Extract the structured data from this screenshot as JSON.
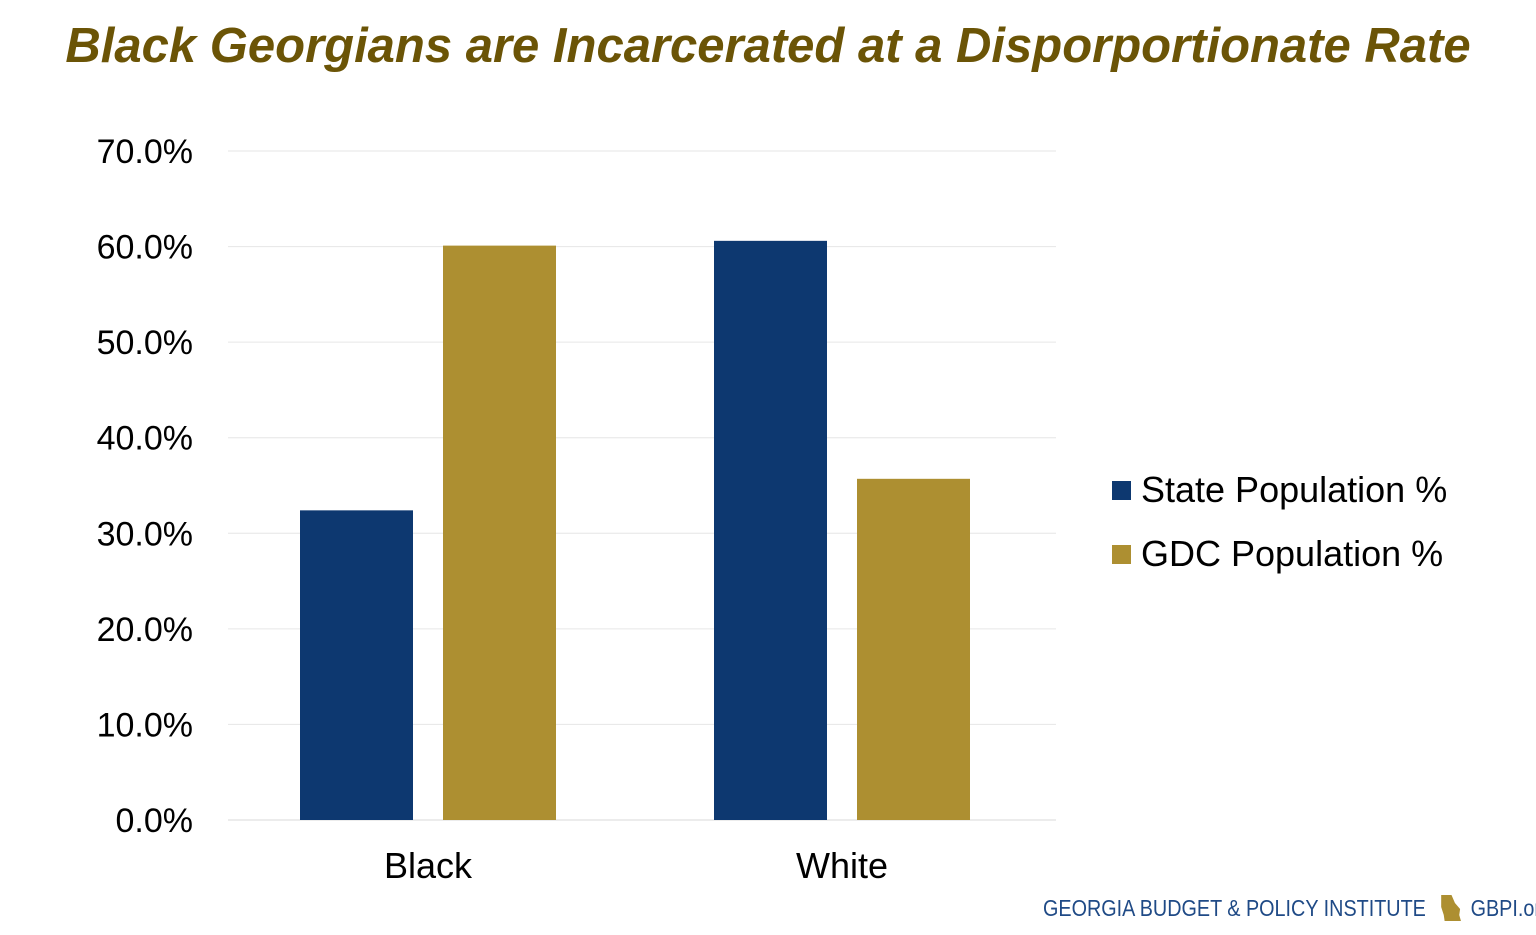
{
  "chart_data": {
    "type": "bar",
    "title": "Black Georgians are Incarcerated at a Disporportionate Rate",
    "categories": [
      "Black",
      "White"
    ],
    "series": [
      {
        "name": "State Population %",
        "values": [
          32.4,
          60.6
        ],
        "color": "#0d3870"
      },
      {
        "name": "GDC Population %",
        "values": [
          60.1,
          35.7
        ],
        "color": "#ad8f31"
      }
    ],
    "xlabel": "",
    "ylabel": "",
    "ylim": [
      0,
      70
    ],
    "yticks": [
      "0.0%",
      "10.0%",
      "20.0%",
      "30.0%",
      "40.0%",
      "50.0%",
      "60.0%",
      "70.0%"
    ],
    "grid": true,
    "legend": "right"
  },
  "footer": {
    "org": "GEORGIA BUDGET & POLICY INSTITUTE",
    "url": "GBPI.org",
    "logo_color": "#ad8f31"
  }
}
